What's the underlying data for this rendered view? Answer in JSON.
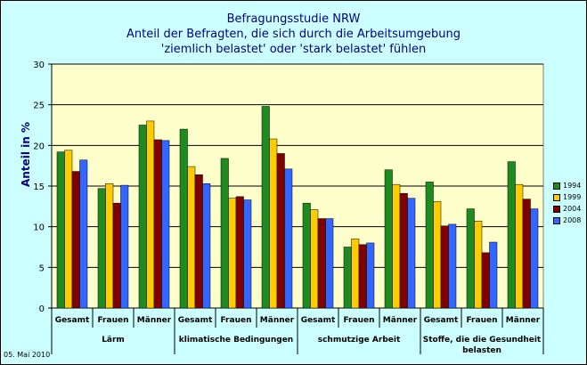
{
  "chart_data": {
    "type": "bar",
    "title": [
      "Befragungsstudie NRW",
      "Anteil der Befragten, die sich durch die Arbeitsumgebung",
      "'ziemlich belastet' oder 'stark belastet' fühlen"
    ],
    "ylabel": "Anteil in %",
    "ylim": [
      0,
      30
    ],
    "yticks": [
      0,
      5,
      10,
      15,
      20,
      25,
      30
    ],
    "groups": [
      {
        "name": "Lärm",
        "categories": [
          "Gesamt",
          "Frauen",
          "Männer"
        ]
      },
      {
        "name": "klimatische Bedingungen",
        "categories": [
          "Gesamt",
          "Frauen",
          "Männer"
        ]
      },
      {
        "name": "schmutzige Arbeit",
        "categories": [
          "Gesamt",
          "Frauen",
          "Männer"
        ]
      },
      {
        "name": "Stoffe, die die Gesundheit belasten",
        "categories": [
          "Gesamt",
          "Frauen",
          "Männer"
        ]
      }
    ],
    "series": [
      {
        "name": "1994",
        "color": "#1f8a1f",
        "values": [
          19.2,
          14.7,
          22.5,
          22.0,
          18.4,
          24.8,
          12.9,
          7.5,
          17.0,
          15.5,
          12.2,
          18.0
        ]
      },
      {
        "name": "1999",
        "color": "#ffcc00",
        "values": [
          19.4,
          15.3,
          23.0,
          17.4,
          13.5,
          20.8,
          12.1,
          8.5,
          15.2,
          13.1,
          10.7,
          15.2
        ]
      },
      {
        "name": "2004",
        "color": "#800000",
        "values": [
          16.8,
          12.9,
          20.7,
          16.4,
          13.7,
          19.0,
          11.0,
          7.8,
          14.1,
          10.1,
          6.8,
          13.4
        ]
      },
      {
        "name": "2008",
        "color": "#3366ff",
        "values": [
          18.2,
          15.1,
          20.6,
          15.3,
          13.3,
          17.1,
          11.0,
          8.0,
          13.5,
          10.3,
          8.1,
          12.2
        ]
      }
    ],
    "legend_position": "right",
    "grid": true,
    "plot_background": "#ffffcc"
  },
  "footer": "05. Mai 2010"
}
